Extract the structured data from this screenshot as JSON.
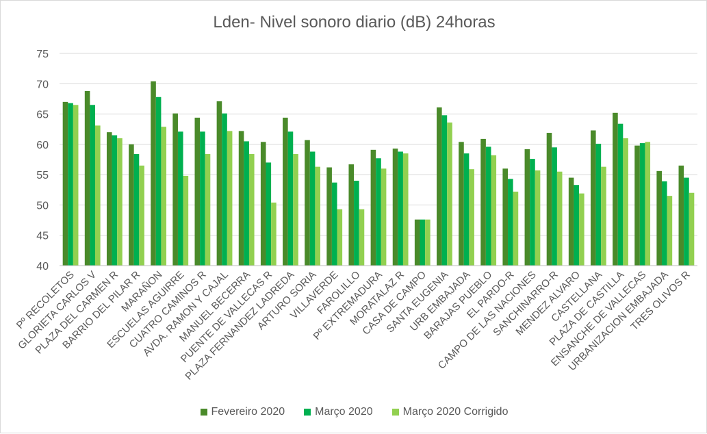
{
  "chart_data": {
    "type": "bar",
    "title": "Lden- Nivel sonoro diario (dB) 24horas",
    "xlabel": "",
    "ylabel": "",
    "ylim": [
      40,
      75
    ],
    "yticks": [
      "40",
      "45",
      "50",
      "55",
      "60",
      "65",
      "70",
      "75"
    ],
    "grid": true,
    "legend_position": "bottom",
    "categories": [
      "Pº RECOLETOS",
      "GLORIETA CARLOS V",
      "PLAZA DEL CARMEN R",
      "BARRIO DEL PILAR R",
      "MARAÑON",
      "ESCUELAS AGUIRRE",
      "CUATRO CAMINOS R",
      "AVDA. RAMON Y CAJAL",
      "MANUEL BECERRA",
      "PUENTE DE VALLECAS R",
      "PLAZA FERNANDEZ LADREDA",
      "ARTURO SORIA",
      "VILLAVERDE",
      "FAROLILLO",
      "Pº EXTREMADURA",
      "MORATALAZ R",
      "CASA DE CAMPO",
      "SANTA EUGENIA",
      "URB EMBAJADA",
      "BARAJAS PUEBLO",
      "EL PARDO-R",
      "CAMPO DE LAS NACIONES",
      "SANCHINARRO-R",
      "MENDEZ ALVARO",
      "CASTELLANA",
      "PLAZA DE CASTILLA",
      "ENSANCHE DE VALLECAS",
      "URBANIZACION EMBAJADA",
      "TRES OLIVOS R"
    ],
    "series": [
      {
        "name": "Fevereiro 2020",
        "color": "#4a8a2a",
        "values": [
          67.0,
          68.8,
          62.0,
          60.0,
          70.4,
          65.1,
          64.4,
          67.1,
          62.2,
          60.4,
          64.4,
          60.7,
          56.2,
          56.7,
          59.1,
          59.3,
          47.6,
          66.1,
          60.4,
          60.9,
          56.0,
          59.2,
          61.9,
          54.5,
          62.3,
          65.2,
          59.8,
          55.6,
          56.5
        ]
      },
      {
        "name": "Março 2020",
        "color": "#00b050",
        "values": [
          66.8,
          66.5,
          61.5,
          58.4,
          67.8,
          62.1,
          62.1,
          65.1,
          60.5,
          57.0,
          62.1,
          58.8,
          53.7,
          54.0,
          57.7,
          58.8,
          47.6,
          64.8,
          58.5,
          59.6,
          54.3,
          57.6,
          59.5,
          53.3,
          60.1,
          63.4,
          60.2,
          53.9,
          54.5
        ]
      },
      {
        "name": "Março 2020 Corrigido",
        "color": "#92d050",
        "values": [
          66.5,
          63.1,
          61.0,
          56.5,
          62.9,
          54.8,
          58.4,
          62.2,
          58.4,
          50.4,
          58.4,
          56.3,
          49.3,
          49.3,
          56.0,
          58.5,
          47.6,
          63.6,
          55.9,
          58.2,
          52.2,
          55.7,
          55.5,
          51.9,
          56.3,
          61.0,
          60.4,
          51.5,
          52.0
        ]
      }
    ]
  }
}
